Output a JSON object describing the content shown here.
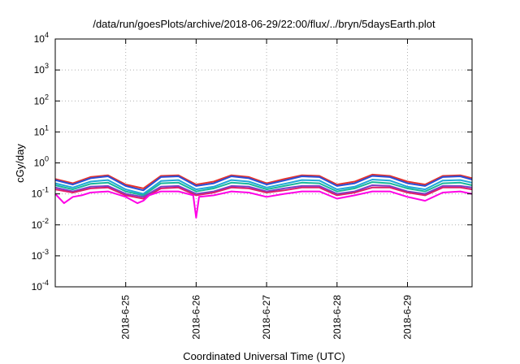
{
  "chart_data": {
    "type": "line",
    "title": "/data/run/goesPlots/archive/2018-06-29/22:00/flux/../bryn/5daysEarth.plot",
    "xlabel": "Coordinated Universal Time (UTC)",
    "ylabel": "cGy/day",
    "yscale": "log",
    "ylim": [
      0.0001,
      10000
    ],
    "xlim": [
      "2018-06-24T00:00",
      "2018-06-29T22:00"
    ],
    "grid": true,
    "legend": "none",
    "x_ticks": [
      {
        "date": "2018-06-25",
        "label": "2018-6-25"
      },
      {
        "date": "2018-06-26",
        "label": "2018-6-26"
      },
      {
        "date": "2018-06-27",
        "label": "2018-6-27"
      },
      {
        "date": "2018-06-28",
        "label": "2018-6-28"
      },
      {
        "date": "2018-06-29",
        "label": "2018-6-29"
      }
    ],
    "y_ticks": [
      {
        "value": 0.0001,
        "base": "10",
        "exp": "-4"
      },
      {
        "value": 0.001,
        "base": "10",
        "exp": "-3"
      },
      {
        "value": 0.01,
        "base": "10",
        "exp": "-2"
      },
      {
        "value": 0.1,
        "base": "10",
        "exp": "-1"
      },
      {
        "value": 1,
        "base": "10",
        "exp": "0"
      },
      {
        "value": 10,
        "base": "10",
        "exp": "1"
      },
      {
        "value": 100,
        "base": "10",
        "exp": "2"
      },
      {
        "value": 1000,
        "base": "10",
        "exp": "3"
      },
      {
        "value": 10000,
        "base": "10",
        "exp": "4"
      }
    ],
    "series": [
      {
        "color": "#e8322a",
        "x": [
          "2018-06-24T00:00",
          "2018-06-24T06:00",
          "2018-06-24T12:00",
          "2018-06-24T18:00",
          "2018-06-25T00:00",
          "2018-06-25T06:00",
          "2018-06-25T12:00",
          "2018-06-25T18:00",
          "2018-06-26T00:00",
          "2018-06-26T06:00",
          "2018-06-26T12:00",
          "2018-06-26T18:00",
          "2018-06-27T00:00",
          "2018-06-27T06:00",
          "2018-06-27T12:00",
          "2018-06-27T18:00",
          "2018-06-28T00:00",
          "2018-06-28T06:00",
          "2018-06-28T12:00",
          "2018-06-28T18:00",
          "2018-06-29T00:00",
          "2018-06-29T06:00",
          "2018-06-29T12:00",
          "2018-06-29T18:00",
          "2018-06-29T22:00"
        ],
        "values": [
          0.3,
          0.22,
          0.35,
          0.4,
          0.2,
          0.15,
          0.38,
          0.4,
          0.2,
          0.25,
          0.4,
          0.35,
          0.22,
          0.3,
          0.4,
          0.38,
          0.2,
          0.25,
          0.42,
          0.38,
          0.25,
          0.2,
          0.38,
          0.4,
          0.32
        ]
      },
      {
        "color": "#2a4fd8",
        "x": [
          "2018-06-24T00:00",
          "2018-06-24T06:00",
          "2018-06-24T12:00",
          "2018-06-24T18:00",
          "2018-06-25T00:00",
          "2018-06-25T06:00",
          "2018-06-25T12:00",
          "2018-06-25T18:00",
          "2018-06-26T00:00",
          "2018-06-26T06:00",
          "2018-06-26T12:00",
          "2018-06-26T18:00",
          "2018-06-27T00:00",
          "2018-06-27T06:00",
          "2018-06-27T12:00",
          "2018-06-27T18:00",
          "2018-06-28T00:00",
          "2018-06-28T06:00",
          "2018-06-28T12:00",
          "2018-06-28T18:00",
          "2018-06-29T00:00",
          "2018-06-29T06:00",
          "2018-06-29T12:00",
          "2018-06-29T18:00",
          "2018-06-29T22:00"
        ],
        "values": [
          0.28,
          0.2,
          0.32,
          0.37,
          0.18,
          0.13,
          0.35,
          0.37,
          0.18,
          0.22,
          0.37,
          0.32,
          0.2,
          0.27,
          0.37,
          0.35,
          0.18,
          0.22,
          0.38,
          0.35,
          0.22,
          0.18,
          0.35,
          0.37,
          0.29
        ]
      },
      {
        "color": "#22a6d8",
        "x": [
          "2018-06-24T00:00",
          "2018-06-24T06:00",
          "2018-06-24T12:00",
          "2018-06-24T18:00",
          "2018-06-25T00:00",
          "2018-06-25T06:00",
          "2018-06-25T12:00",
          "2018-06-25T18:00",
          "2018-06-26T00:00",
          "2018-06-26T06:00",
          "2018-06-26T12:00",
          "2018-06-26T18:00",
          "2018-06-27T00:00",
          "2018-06-27T06:00",
          "2018-06-27T12:00",
          "2018-06-27T18:00",
          "2018-06-28T00:00",
          "2018-06-28T06:00",
          "2018-06-28T12:00",
          "2018-06-28T18:00",
          "2018-06-29T00:00",
          "2018-06-29T06:00",
          "2018-06-29T12:00",
          "2018-06-29T18:00",
          "2018-06-29T22:00"
        ],
        "values": [
          0.22,
          0.16,
          0.25,
          0.28,
          0.14,
          0.1,
          0.26,
          0.28,
          0.14,
          0.17,
          0.28,
          0.25,
          0.16,
          0.21,
          0.28,
          0.27,
          0.14,
          0.17,
          0.29,
          0.27,
          0.17,
          0.14,
          0.27,
          0.28,
          0.23
        ]
      },
      {
        "color": "#19b89a",
        "x": [
          "2018-06-24T00:00",
          "2018-06-24T06:00",
          "2018-06-24T12:00",
          "2018-06-24T18:00",
          "2018-06-25T00:00",
          "2018-06-25T06:00",
          "2018-06-25T12:00",
          "2018-06-25T18:00",
          "2018-06-26T00:00",
          "2018-06-26T06:00",
          "2018-06-26T12:00",
          "2018-06-26T18:00",
          "2018-06-27T00:00",
          "2018-06-27T06:00",
          "2018-06-27T12:00",
          "2018-06-27T18:00",
          "2018-06-28T00:00",
          "2018-06-28T06:00",
          "2018-06-28T12:00",
          "2018-06-28T18:00",
          "2018-06-29T00:00",
          "2018-06-29T06:00",
          "2018-06-29T12:00",
          "2018-06-29T18:00",
          "2018-06-29T22:00"
        ],
        "values": [
          0.19,
          0.14,
          0.21,
          0.23,
          0.12,
          0.09,
          0.22,
          0.23,
          0.12,
          0.15,
          0.23,
          0.21,
          0.14,
          0.18,
          0.23,
          0.22,
          0.12,
          0.15,
          0.24,
          0.22,
          0.15,
          0.12,
          0.22,
          0.23,
          0.19
        ]
      },
      {
        "color": "#7a3fc8",
        "x": [
          "2018-06-24T00:00",
          "2018-06-24T06:00",
          "2018-06-24T12:00",
          "2018-06-24T18:00",
          "2018-06-25T00:00",
          "2018-06-25T06:00",
          "2018-06-25T12:00",
          "2018-06-25T18:00",
          "2018-06-26T00:00",
          "2018-06-26T06:00",
          "2018-06-26T12:00",
          "2018-06-26T18:00",
          "2018-06-27T00:00",
          "2018-06-27T06:00",
          "2018-06-27T12:00",
          "2018-06-27T18:00",
          "2018-06-28T00:00",
          "2018-06-28T06:00",
          "2018-06-28T12:00",
          "2018-06-28T18:00",
          "2018-06-29T00:00",
          "2018-06-29T06:00",
          "2018-06-29T12:00",
          "2018-06-29T18:00",
          "2018-06-29T22:00"
        ],
        "values": [
          0.16,
          0.12,
          0.17,
          0.18,
          0.1,
          0.08,
          0.17,
          0.18,
          0.1,
          0.12,
          0.18,
          0.17,
          0.12,
          0.15,
          0.18,
          0.18,
          0.1,
          0.12,
          0.19,
          0.18,
          0.12,
          0.1,
          0.18,
          0.18,
          0.16
        ]
      },
      {
        "color": "#e01d6c",
        "x": [
          "2018-06-24T00:00",
          "2018-06-24T06:00",
          "2018-06-24T12:00",
          "2018-06-24T18:00",
          "2018-06-25T00:00",
          "2018-06-25T06:00",
          "2018-06-25T12:00",
          "2018-06-25T18:00",
          "2018-06-26T00:00",
          "2018-06-26T06:00",
          "2018-06-26T12:00",
          "2018-06-26T18:00",
          "2018-06-27T00:00",
          "2018-06-27T06:00",
          "2018-06-27T12:00",
          "2018-06-27T18:00",
          "2018-06-28T00:00",
          "2018-06-28T06:00",
          "2018-06-28T12:00",
          "2018-06-28T18:00",
          "2018-06-29T00:00",
          "2018-06-29T06:00",
          "2018-06-29T12:00",
          "2018-06-29T18:00",
          "2018-06-29T22:00"
        ],
        "values": [
          0.14,
          0.11,
          0.15,
          0.16,
          0.09,
          0.07,
          0.15,
          0.16,
          0.09,
          0.11,
          0.16,
          0.15,
          0.11,
          0.13,
          0.16,
          0.16,
          0.09,
          0.11,
          0.16,
          0.16,
          0.11,
          0.09,
          0.16,
          0.16,
          0.14
        ]
      },
      {
        "color": "#ff00e6",
        "x": [
          "2018-06-24T00:00",
          "2018-06-24T03:00",
          "2018-06-24T06:00",
          "2018-06-24T09:00",
          "2018-06-24T12:00",
          "2018-06-24T18:00",
          "2018-06-25T00:00",
          "2018-06-25T04:00",
          "2018-06-25T06:00",
          "2018-06-25T08:00",
          "2018-06-25T12:00",
          "2018-06-25T18:00",
          "2018-06-25T23:00",
          "2018-06-26T00:00",
          "2018-06-26T01:00",
          "2018-06-26T06:00",
          "2018-06-26T12:00",
          "2018-06-26T18:00",
          "2018-06-27T00:00",
          "2018-06-27T06:00",
          "2018-06-27T12:00",
          "2018-06-27T18:00",
          "2018-06-28T00:00",
          "2018-06-28T06:00",
          "2018-06-28T12:00",
          "2018-06-28T18:00",
          "2018-06-29T00:00",
          "2018-06-29T06:00",
          "2018-06-29T12:00",
          "2018-06-29T18:00",
          "2018-06-29T22:00"
        ],
        "values": [
          0.1,
          0.05,
          0.08,
          0.09,
          0.11,
          0.12,
          0.08,
          0.05,
          0.06,
          0.09,
          0.12,
          0.12,
          0.09,
          0.017,
          0.08,
          0.09,
          0.12,
          0.11,
          0.08,
          0.1,
          0.12,
          0.12,
          0.07,
          0.09,
          0.12,
          0.12,
          0.08,
          0.06,
          0.11,
          0.12,
          0.1
        ]
      }
    ]
  }
}
